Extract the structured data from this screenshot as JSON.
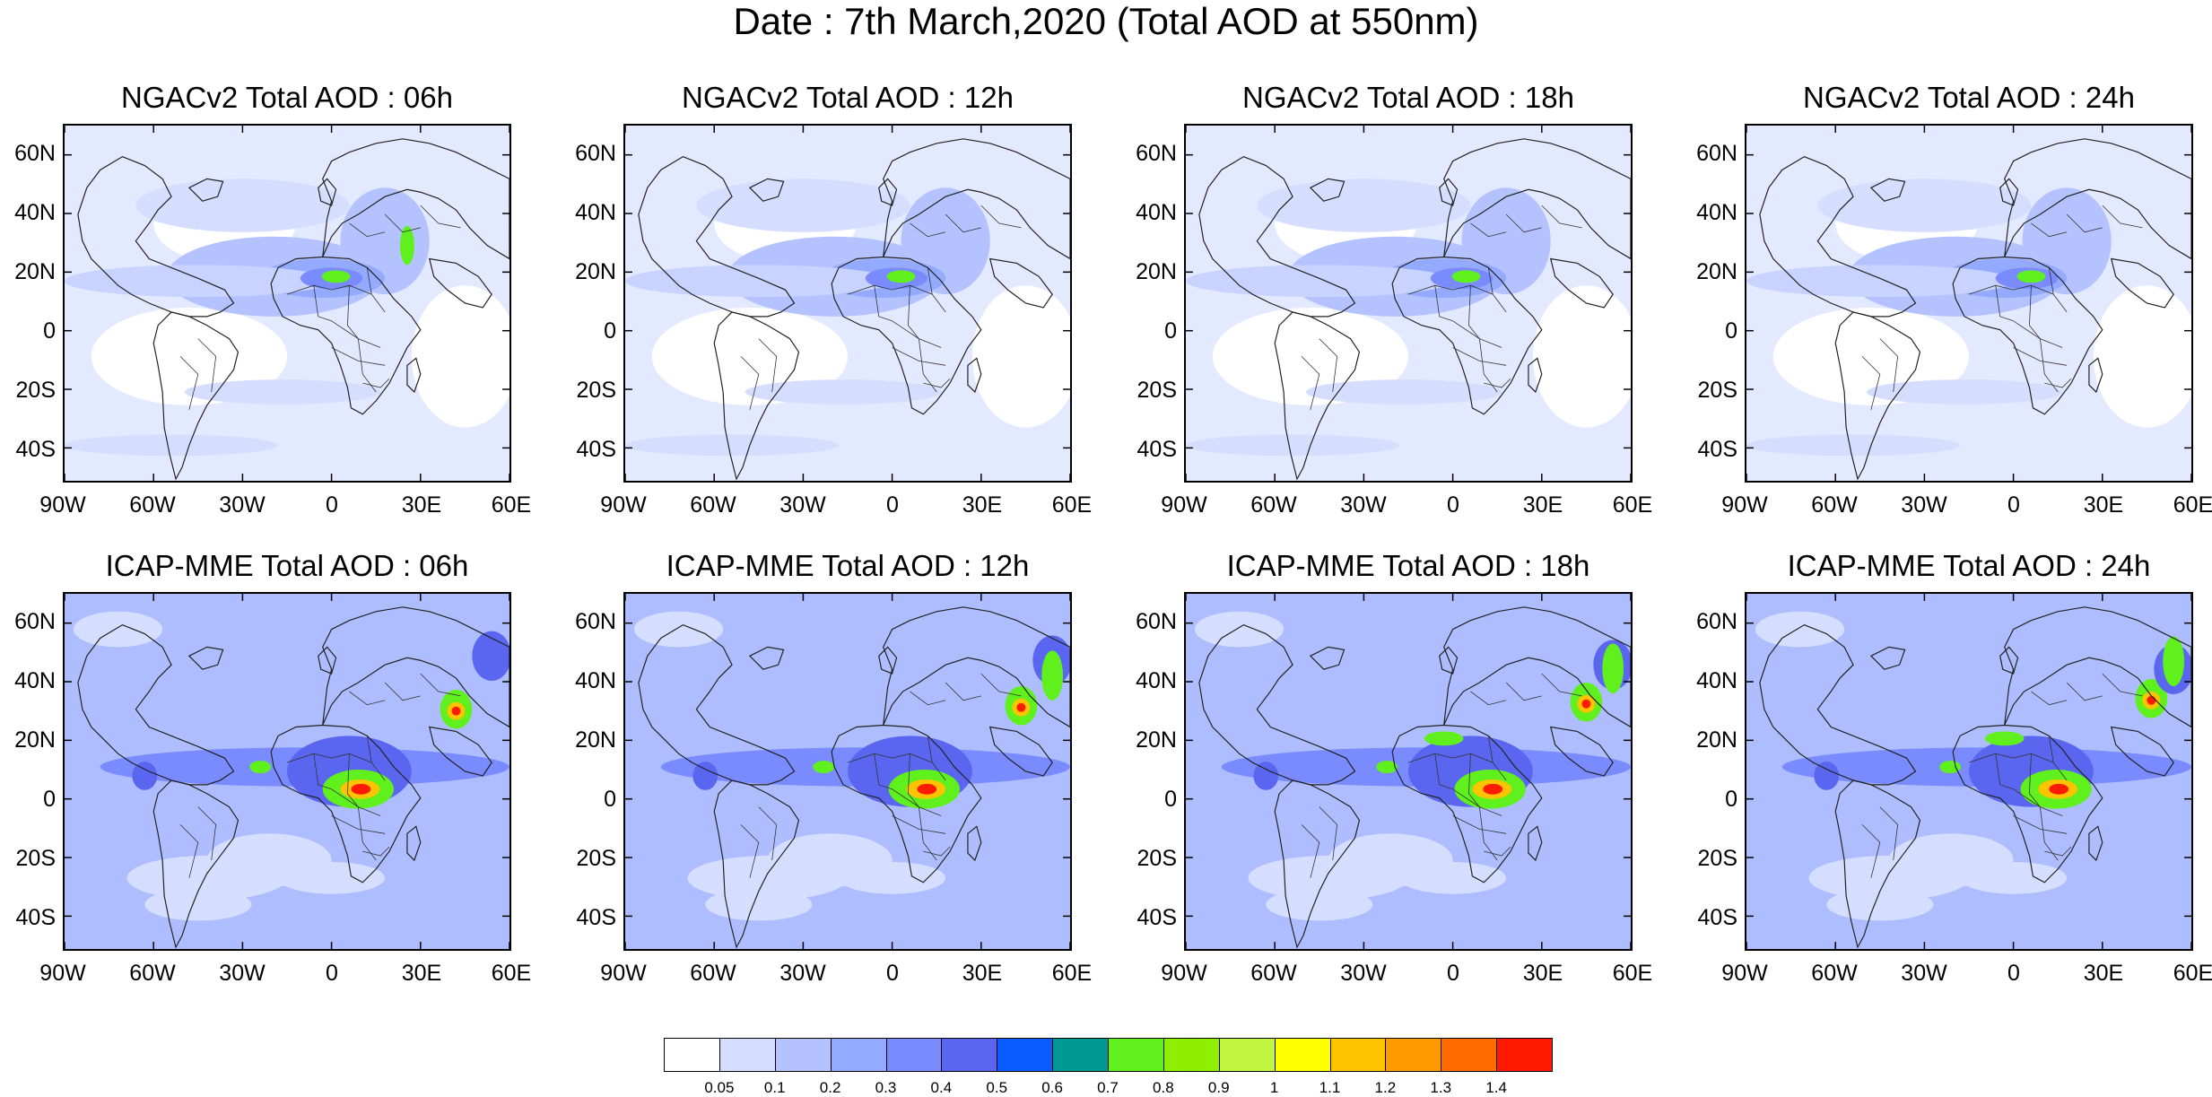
{
  "title": "Date : 7th March,2020 (Total AOD at 550nm)",
  "panels": [
    {
      "title": "NGACv2 Total AOD : 06h",
      "model": "ngac"
    },
    {
      "title": "NGACv2 Total AOD : 12h",
      "model": "ngac"
    },
    {
      "title": "NGACv2 Total AOD : 18h",
      "model": "ngac"
    },
    {
      "title": "NGACv2 Total AOD : 24h",
      "model": "ngac"
    },
    {
      "title": "ICAP-MME Total AOD : 06h",
      "model": "icap"
    },
    {
      "title": "ICAP-MME Total AOD : 12h",
      "model": "icap"
    },
    {
      "title": "ICAP-MME Total AOD : 18h",
      "model": "icap"
    },
    {
      "title": "ICAP-MME Total AOD : 24h",
      "model": "icap"
    }
  ],
  "lat_labels": [
    "60N",
    "40N",
    "20N",
    "0",
    "20S",
    "40S"
  ],
  "lon_labels": [
    "90W",
    "60W",
    "30W",
    "0",
    "30E",
    "60E"
  ],
  "colorbar": {
    "colors": [
      "#ffffff",
      "#d6deff",
      "#b4c3ff",
      "#94aaff",
      "#7a8bff",
      "#5b66f0",
      "#0b5cff",
      "#009893",
      "#5ff01e",
      "#8ef000",
      "#c2f540",
      "#ffff00",
      "#ffc400",
      "#ff9b00",
      "#ff6b00",
      "#ff1a00"
    ],
    "labels": [
      "0.05",
      "0.1",
      "0.2",
      "0.3",
      "0.4",
      "0.5",
      "0.6",
      "0.7",
      "0.8",
      "0.9",
      "1",
      "1.1",
      "1.2",
      "1.3",
      "1.4"
    ]
  },
  "colors": {
    "background_ngac": "#e3e9ff",
    "background_icap": "#aebdff"
  }
}
